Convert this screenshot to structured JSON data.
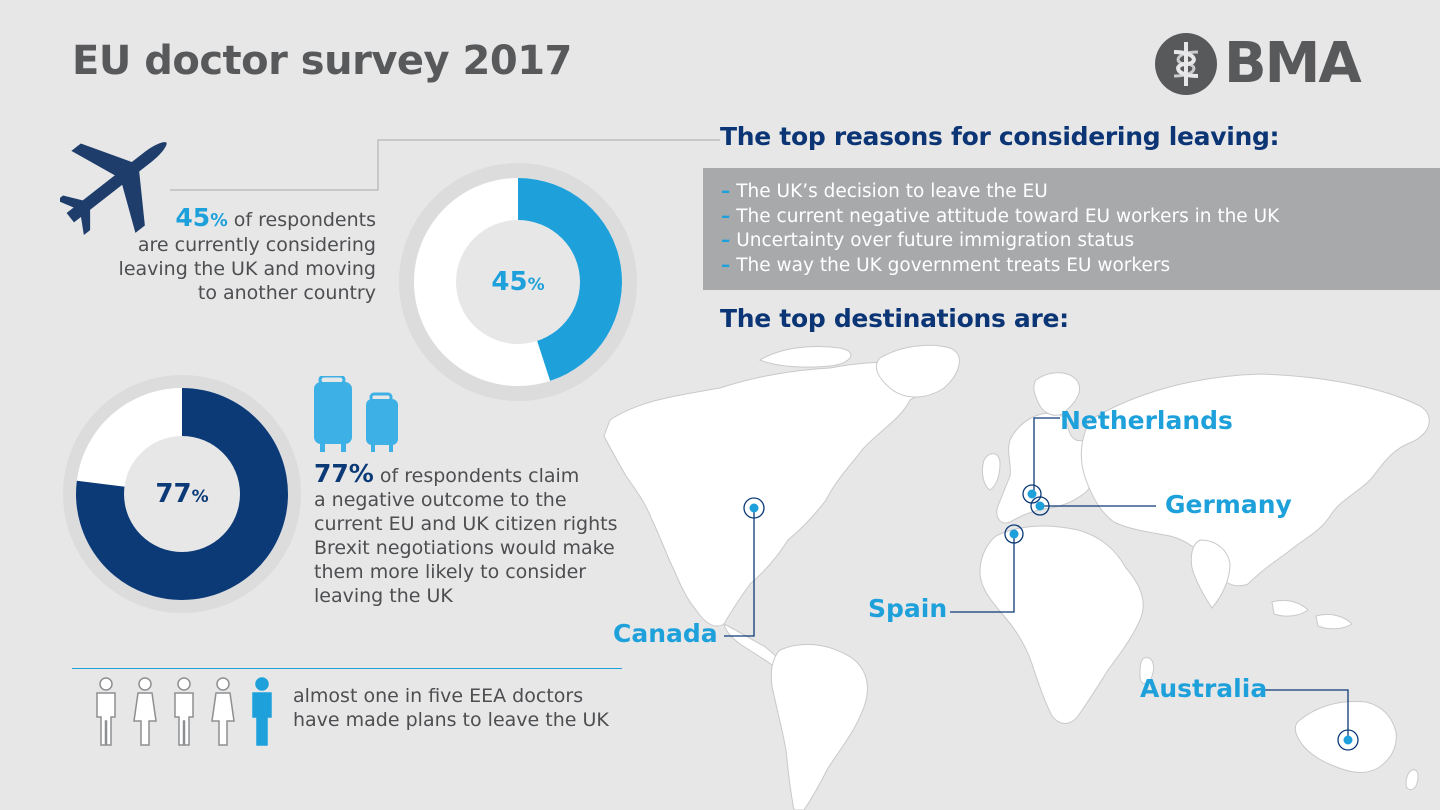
{
  "title": "EU doctor survey 2017",
  "logo": {
    "text": "BMA"
  },
  "stats": {
    "considering": {
      "value": 45,
      "value_label": "45",
      "pct_sign": "%",
      "text_line1": "of respondents",
      "text_line2": "are currently considering",
      "text_line3": "leaving the UK and moving",
      "text_line4": "to another country"
    },
    "negative": {
      "value": 77,
      "value_label": "77",
      "pct_sign": "%",
      "text_line1": "of respondents claim",
      "text_line2": "a negative outcome to the",
      "text_line3": "current EU and UK citizen rights",
      "text_line4": "Brexit negotiations would make",
      "text_line5": "them more likely to consider",
      "text_line6": "leaving the UK"
    },
    "plans": {
      "people_total": 5,
      "people_highlighted": 1,
      "text_line1": "almost one in five EEA doctors",
      "text_line2": "have made plans to leave the UK"
    }
  },
  "reasons": {
    "title": "The top reasons for considering leaving:",
    "items": [
      "The UK’s decision to leave the EU",
      "The current negative attitude toward EU workers in the UK",
      "Uncertainty over future immigration status",
      "The way the UK government treats EU workers"
    ]
  },
  "destinations": {
    "title": "The top destinations are:",
    "countries": [
      "Netherlands",
      "Germany",
      "Spain",
      "Canada",
      "Australia"
    ]
  },
  "colors": {
    "light_blue": "#1ea1db",
    "dark_blue": "#0b3a77",
    "grey_text": "#58595b",
    "reasons_box": "#a8a9ab"
  },
  "icons": [
    "plane-icon",
    "luggage-icon",
    "person-icon",
    "bma-logo-icon"
  ]
}
